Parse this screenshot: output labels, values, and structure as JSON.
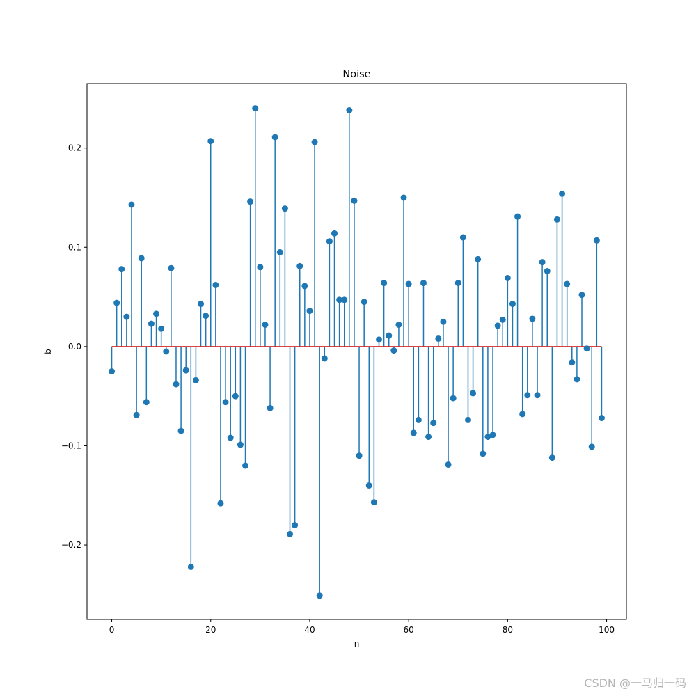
{
  "chart_data": {
    "type": "stem",
    "title": "Noise",
    "xlabel": "n",
    "ylabel": "b",
    "xlim": [
      -5,
      104
    ],
    "ylim": [
      -0.275,
      0.265
    ],
    "xticks": [
      0,
      20,
      40,
      60,
      80,
      100
    ],
    "yticks": [
      -0.2,
      -0.1,
      0.0,
      0.1,
      0.2
    ],
    "xtick_labels": [
      "0",
      "20",
      "40",
      "60",
      "80",
      "100"
    ],
    "ytick_labels": [
      "−0.2",
      "−0.1",
      "0.0",
      "0.1",
      "0.2"
    ],
    "grid": false,
    "colors": {
      "stem": "#1f77b4",
      "baseline": "#d62728"
    },
    "series": [
      {
        "x": [
          0,
          1,
          2,
          3,
          4,
          5,
          6,
          7,
          8,
          9,
          10,
          11,
          12,
          13,
          14,
          15,
          16,
          17,
          18,
          19,
          20,
          21,
          22,
          23,
          24,
          25,
          26,
          27,
          28,
          29,
          30,
          31,
          32,
          33,
          34,
          35,
          36,
          37,
          38,
          39,
          40,
          41,
          42,
          43,
          44,
          45,
          46,
          47,
          48,
          49,
          50,
          51,
          52,
          53,
          54,
          55,
          56,
          57,
          58,
          59,
          60,
          61,
          62,
          63,
          64,
          65,
          66,
          67,
          68,
          69,
          70,
          71,
          72,
          73,
          74,
          75,
          76,
          77,
          78,
          79,
          80,
          81,
          82,
          83,
          84,
          85,
          86,
          87,
          88,
          89,
          90,
          91,
          92,
          93,
          94,
          95,
          96,
          97,
          98,
          99
        ],
        "values": [
          -0.025,
          0.044,
          0.078,
          0.03,
          0.143,
          -0.069,
          0.089,
          -0.056,
          0.023,
          0.033,
          0.018,
          -0.005,
          0.079,
          -0.038,
          -0.085,
          -0.024,
          -0.222,
          -0.034,
          0.043,
          0.031,
          0.207,
          0.062,
          -0.158,
          -0.056,
          -0.092,
          -0.05,
          -0.099,
          -0.12,
          0.146,
          0.24,
          0.08,
          0.022,
          -0.062,
          0.211,
          0.095,
          0.139,
          -0.189,
          -0.18,
          0.081,
          0.061,
          0.036,
          0.206,
          -0.251,
          -0.012,
          0.106,
          0.114,
          0.047,
          0.047,
          0.238,
          0.147,
          -0.11,
          0.045,
          -0.14,
          -0.157,
          0.007,
          0.064,
          0.011,
          -0.004,
          0.022,
          0.15,
          0.063,
          -0.087,
          -0.074,
          0.064,
          -0.091,
          -0.077,
          0.008,
          0.025,
          -0.119,
          -0.052,
          0.064,
          0.11,
          -0.074,
          -0.047,
          0.088,
          -0.108,
          -0.091,
          -0.089,
          0.021,
          0.027,
          0.069,
          0.043,
          0.131,
          -0.068,
          -0.049,
          0.028,
          -0.049,
          0.085,
          0.076,
          -0.112,
          0.128,
          0.154,
          0.063,
          -0.016,
          -0.033,
          0.052,
          -0.002,
          -0.101,
          0.107,
          -0.072
        ]
      }
    ]
  },
  "watermark": "CSDN @一马归一码"
}
